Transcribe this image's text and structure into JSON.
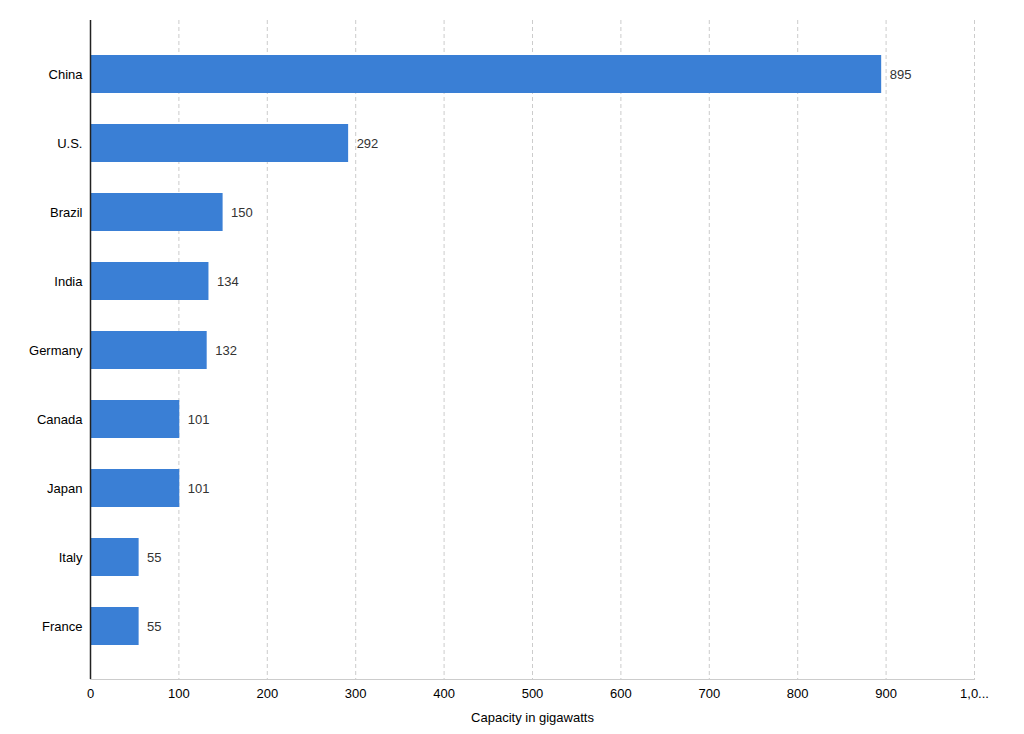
{
  "chart_data": {
    "type": "bar",
    "orientation": "horizontal",
    "categories": [
      "China",
      "U.S.",
      "Brazil",
      "India",
      "Germany",
      "Canada",
      "Japan",
      "Italy",
      "France"
    ],
    "values": [
      895,
      292,
      150,
      134,
      132,
      101,
      101,
      55,
      55
    ],
    "color": "#3a7fd5",
    "xlabel": "Capacity in gigawatts",
    "xlim": [
      0,
      1000
    ],
    "xticks": [
      0,
      100,
      200,
      300,
      400,
      500,
      600,
      700,
      800,
      900,
      {
        "value": 1000,
        "label": "1,0..."
      }
    ],
    "grid": true,
    "data_labels": true
  }
}
